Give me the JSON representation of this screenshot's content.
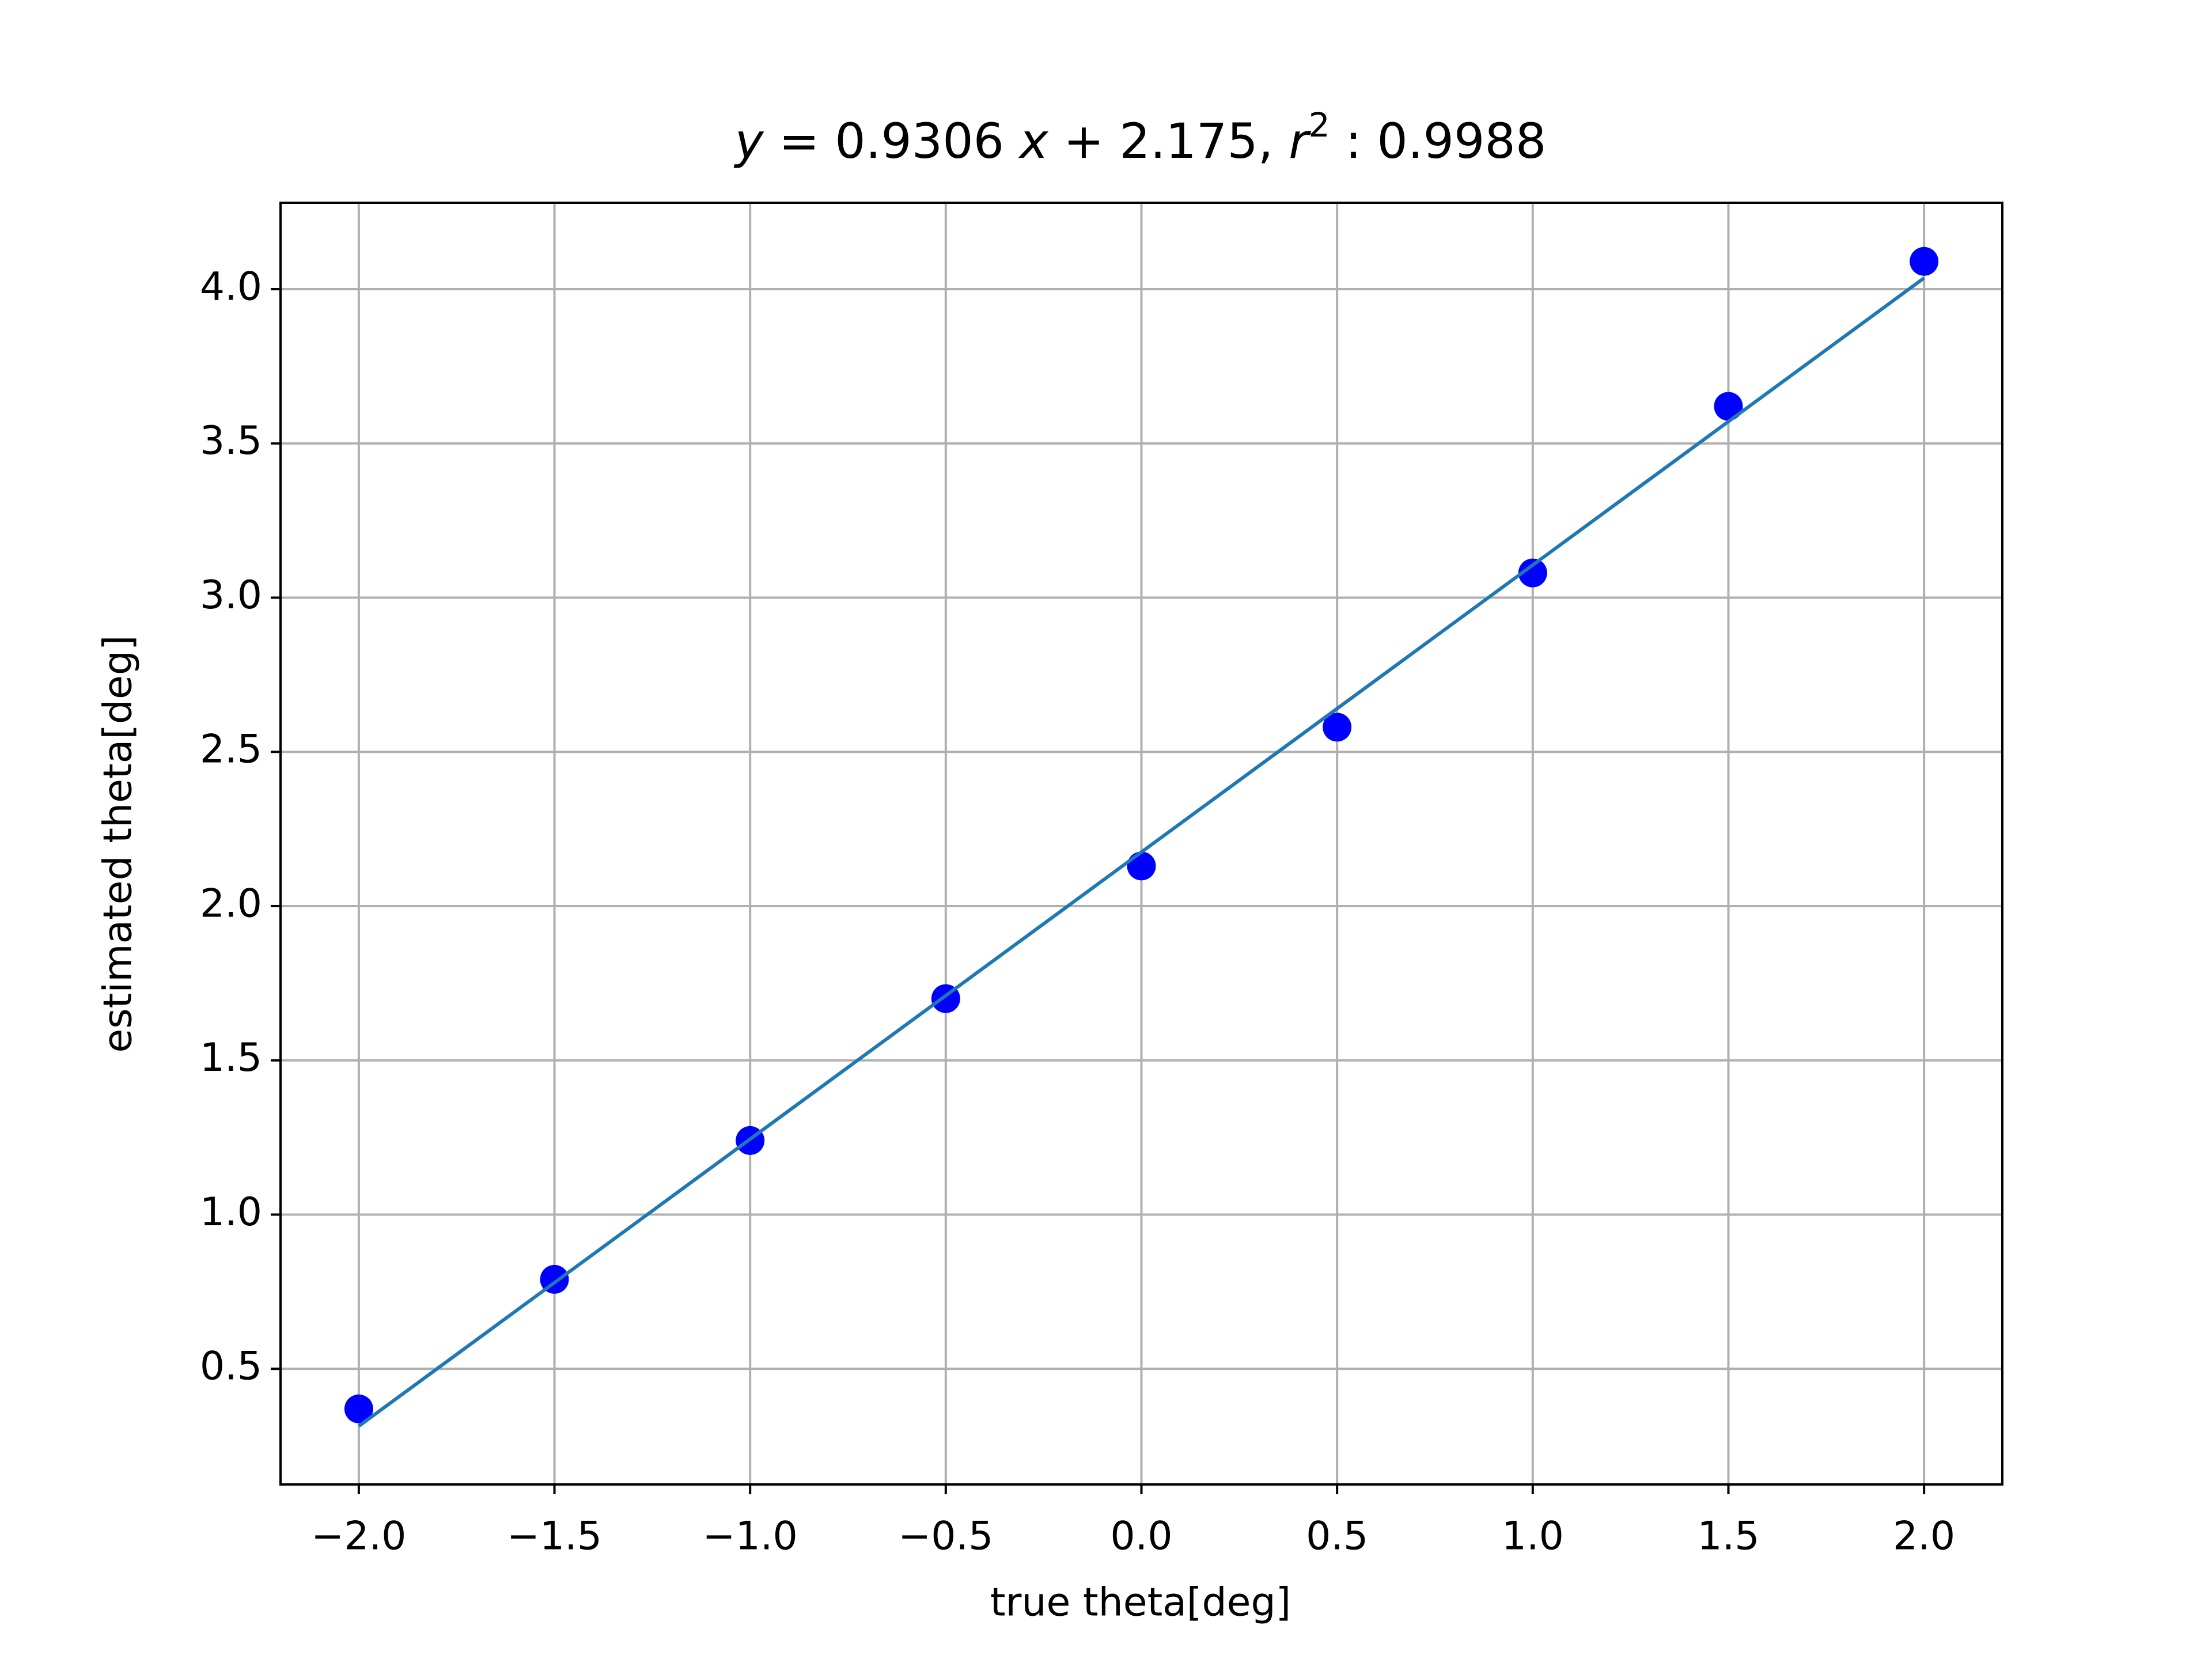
{
  "chart_data": {
    "type": "scatter",
    "title": [
      "y",
      " = 0.9306 ",
      "x",
      " + 2.175, ",
      "r",
      "2",
      " : 0.9988"
    ],
    "x_label": "true theta[deg]",
    "y_label": "estimated theta[deg]",
    "xlim": [
      -2.2,
      2.2
    ],
    "ylim": [
      0.125,
      4.28
    ],
    "xticks": [
      {
        "value": -2,
        "label": "−2.0"
      },
      {
        "value": -1.5,
        "label": "−1.5"
      },
      {
        "value": -1,
        "label": "−1.0"
      },
      {
        "value": -0.5,
        "label": "−0.5"
      },
      {
        "value": 0,
        "label": "0.0"
      },
      0.5,
      {
        "value": 1,
        "label": "1.0"
      },
      1.5,
      {
        "value": 2,
        "label": "2.0"
      }
    ],
    "yticks": [
      0.5,
      {
        "value": 1,
        "label": "1.0"
      },
      1.5,
      {
        "value": 2,
        "label": "2.0"
      },
      2.5,
      {
        "value": 3,
        "label": "3.0"
      },
      3.5,
      {
        "value": 4,
        "label": "4.0"
      }
    ],
    "grid": true,
    "series": [
      {
        "type": "scatter",
        "color": "#0000ff",
        "x": [
          -2,
          -1.5,
          -1,
          -0.5,
          0,
          0.5,
          1,
          1.5,
          2
        ],
        "values": [
          0.37,
          0.79,
          1.24,
          1.7,
          2.13,
          2.58,
          3.08,
          3.62,
          4.09
        ]
      },
      {
        "type": "line",
        "color": "#1f77b4",
        "x": [
          -2,
          2
        ],
        "values": [
          0.314,
          4.036
        ]
      }
    ]
  }
}
